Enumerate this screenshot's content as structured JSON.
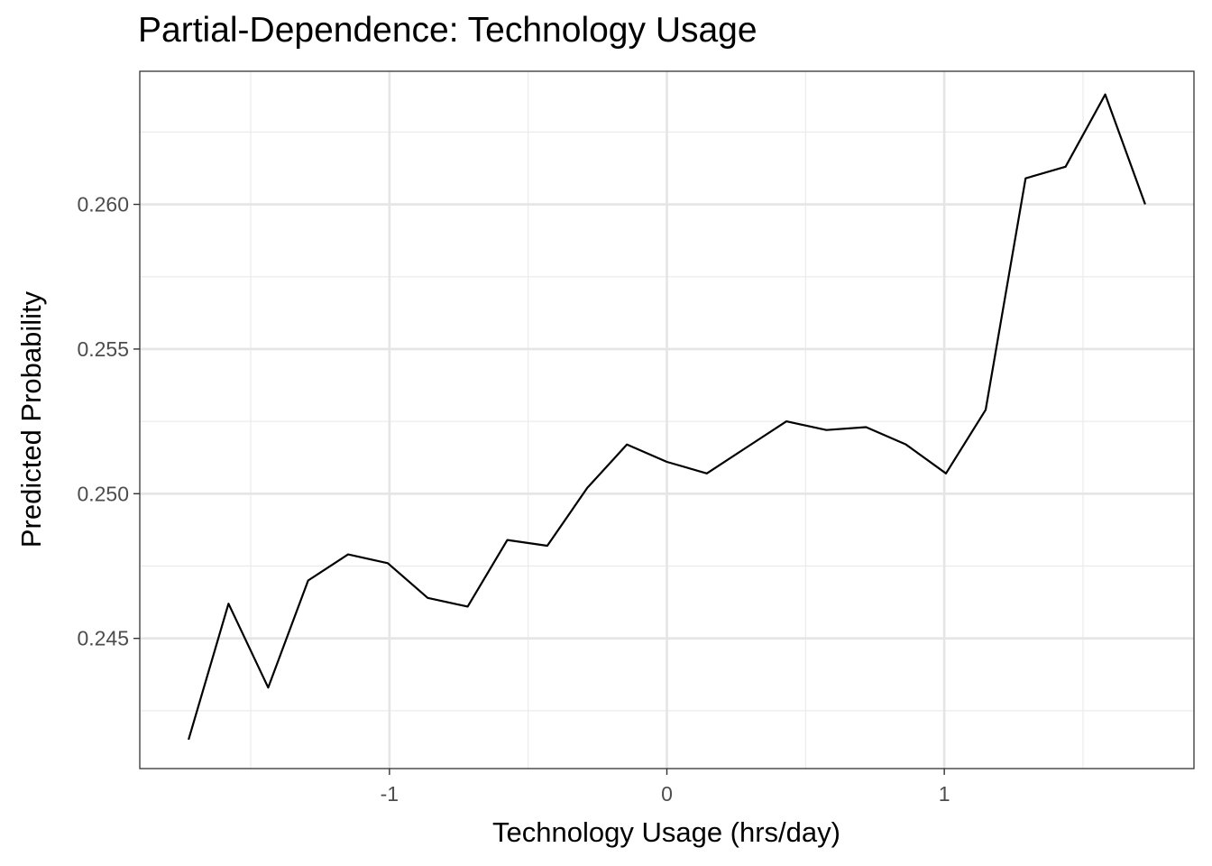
{
  "chart_data": {
    "type": "line",
    "title": "Partial-Dependence: Technology Usage",
    "xlabel": "Technology Usage (hrs/day)",
    "ylabel": "Predicted Probability",
    "xlim": [
      -1.9,
      1.9
    ],
    "ylim": [
      0.2405,
      0.2646
    ],
    "x_ticks": [
      -1,
      0,
      1
    ],
    "x_tick_labels": [
      "-1",
      "0",
      "1"
    ],
    "y_ticks": [
      0.245,
      0.25,
      0.255,
      0.26
    ],
    "y_tick_labels": [
      "0.245",
      "0.250",
      "0.255",
      "0.260"
    ],
    "grid": true,
    "series": [
      {
        "color": "#000000",
        "x": [
          -1.724,
          -1.58,
          -1.437,
          -1.293,
          -1.149,
          -1.006,
          -0.862,
          -0.718,
          -0.575,
          -0.431,
          -0.287,
          -0.144,
          0.0,
          0.144,
          0.287,
          0.431,
          0.575,
          0.718,
          0.862,
          1.006,
          1.149,
          1.293,
          1.437,
          1.58,
          1.724
        ],
        "y": [
          0.2415,
          0.2462,
          0.2433,
          0.247,
          0.2479,
          0.2476,
          0.2464,
          0.2461,
          0.2484,
          0.2482,
          0.2502,
          0.2517,
          0.2511,
          0.2507,
          0.2516,
          0.2525,
          0.2522,
          0.2523,
          0.2517,
          0.2507,
          0.2529,
          0.2609,
          0.2613,
          0.2638,
          0.26
        ]
      }
    ]
  }
}
